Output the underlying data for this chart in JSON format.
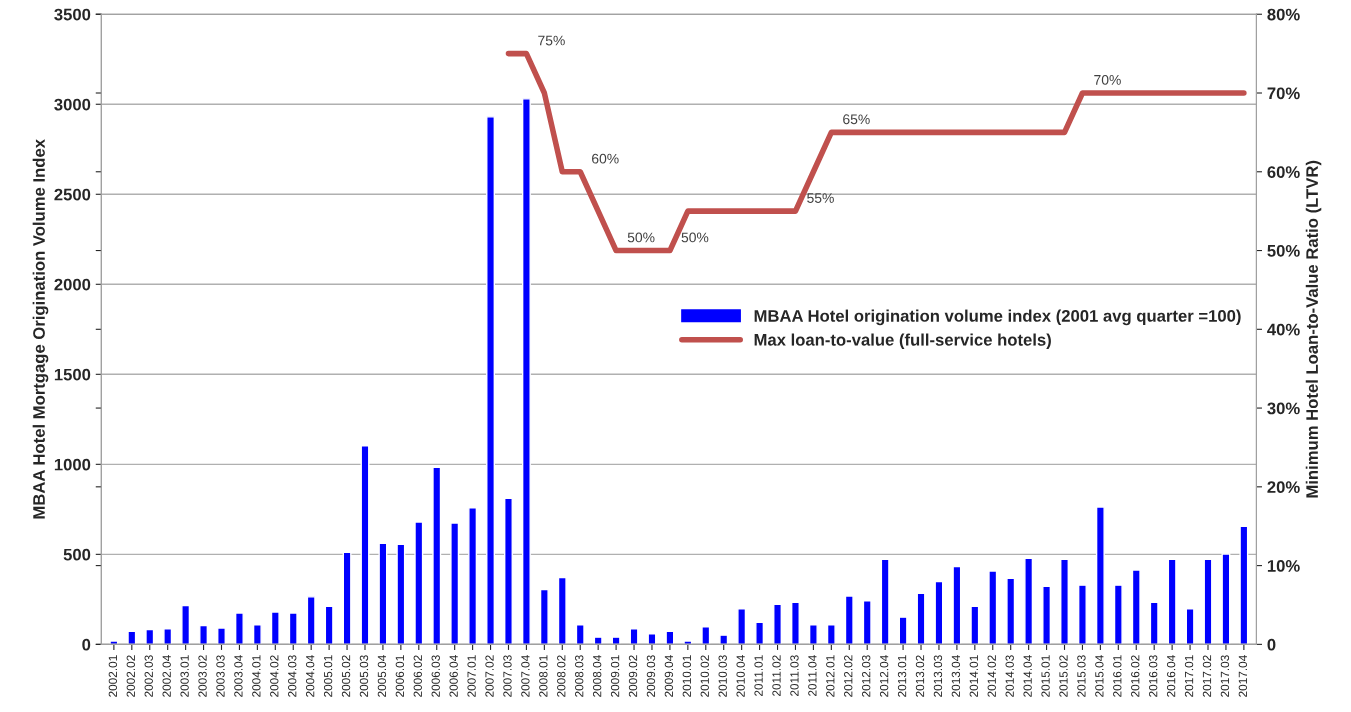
{
  "chart_data": {
    "type": "bar",
    "categories": [
      "2002.01",
      "2002.02",
      "2002.03",
      "2002.04",
      "2003.01",
      "2003.02",
      "2003.03",
      "2003.04",
      "2004.01",
      "2004.02",
      "2004.03",
      "2004.04",
      "2005.01",
      "2005.02",
      "2005.03",
      "2005.04",
      "2006.01",
      "2006.02",
      "2006.03",
      "2006.04",
      "2007.01",
      "2007.02",
      "2007.03",
      "2007.04",
      "2008.01",
      "2008.02",
      "2008.03",
      "2008.04",
      "2009.01",
      "2009.02",
      "2009.03",
      "2009.04",
      "2010.01",
      "2010.02",
      "2010.03",
      "2010.04",
      "2011.01",
      "2011.02",
      "2011.03",
      "2011.04",
      "2012.01",
      "2012.02",
      "2012.03",
      "2012.04",
      "2013.01",
      "2013.02",
      "2013.03",
      "2013.04",
      "2014.01",
      "2014.02",
      "2014.03",
      "2014.04",
      "2015.01",
      "2015.02",
      "2015.03",
      "2015.04",
      "2016.01",
      "2016.02",
      "2016.03",
      "2016.04",
      "2017.01",
      "2017.02",
      "2017.03",
      "2017.04"
    ],
    "ylabel": "MBAA Hotel Mortgage Origination Volume Index",
    "y2label": "Minimum Hotel Loan-to-Value Ratio (LTVR)",
    "ylim": [
      0,
      3500
    ],
    "yticks": [
      0,
      500,
      1000,
      1500,
      2000,
      2500,
      3000,
      3500
    ],
    "y2lim": [
      0,
      80
    ],
    "y2ticks": [
      {
        "value": 0,
        "label": "0"
      },
      {
        "value": 10,
        "label": "10%"
      },
      {
        "value": 20,
        "label": "20%"
      },
      {
        "value": 30,
        "label": "30%"
      },
      {
        "value": 40,
        "label": "40%"
      },
      {
        "value": 50,
        "label": "50%"
      },
      {
        "value": 60,
        "label": "60%"
      },
      {
        "value": 70,
        "label": "70%"
      },
      {
        "value": 80,
        "label": "80%"
      }
    ],
    "grid": "y",
    "legend": "center right",
    "series": [
      {
        "name": "MBAA Hotel origination volume index (2001 avg quarter =100)",
        "color": "#0000ff",
        "values": [
          18,
          73,
          82,
          87,
          216,
          104,
          91,
          174,
          109,
          180,
          174,
          264,
          211,
          512,
          1103,
          562,
          556,
          680,
          983,
          674,
          758,
          2930,
          811,
          3030,
          305,
          371,
          109,
          40,
          40,
          87,
          58,
          73,
          18,
          98,
          51,
          198,
          122,
          222,
          234,
          109,
          109,
          269,
          242,
          473,
          151,
          284,
          349,
          432,
          211,
          407,
          367,
          478,
          323,
          473,
          329,
          763,
          329,
          413,
          234,
          473,
          198,
          473,
          502,
          656
        ]
      },
      {
        "type": "line",
        "axis": "y2",
        "name": "Max loan-to-value (full-service hotels)",
        "color": "#c0504d",
        "values": [
          null,
          null,
          null,
          null,
          null,
          null,
          null,
          null,
          null,
          null,
          null,
          null,
          null,
          null,
          null,
          null,
          null,
          null,
          null,
          null,
          null,
          null,
          75,
          75,
          70,
          60,
          60,
          55,
          50,
          50,
          50,
          50,
          55,
          55,
          55,
          55,
          55,
          55,
          55,
          60,
          65,
          65,
          65,
          65,
          65,
          65,
          65,
          65,
          65,
          65,
          65,
          65,
          65,
          65,
          70,
          70,
          70,
          70,
          70,
          70,
          70,
          70,
          70,
          70
        ],
        "value_labels": [
          null,
          null,
          null,
          null,
          null,
          null,
          null,
          null,
          null,
          null,
          null,
          null,
          null,
          null,
          null,
          null,
          null,
          null,
          null,
          null,
          null,
          null,
          null,
          "75%",
          null,
          null,
          "60%",
          null,
          "50%",
          null,
          null,
          "50%",
          null,
          null,
          null,
          null,
          null,
          null,
          "55%",
          null,
          "65%",
          null,
          null,
          null,
          null,
          null,
          null,
          null,
          null,
          null,
          null,
          null,
          null,
          null,
          "70%",
          null,
          null,
          null,
          null,
          null,
          null,
          null,
          null,
          null
        ]
      }
    ]
  }
}
